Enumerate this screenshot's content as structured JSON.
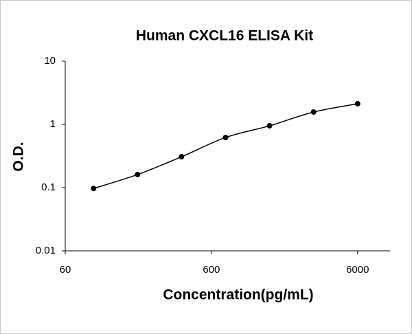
{
  "chart_data": {
    "type": "line",
    "title": "Human CXCL16 ELISA Kit",
    "x_label": "Concentration(pg/mL)",
    "y_label": "O.D.",
    "x_scale": "log",
    "y_scale": "log",
    "x": [
      93.75,
      187.5,
      375,
      750,
      1500,
      3000,
      6000
    ],
    "series": [
      {
        "name": "O.D.",
        "color": "#000000",
        "values": [
          0.097,
          0.161,
          0.308,
          0.62,
          0.95,
          1.57,
          2.12
        ]
      }
    ],
    "xlim": [
      60,
      10000
    ],
    "xticks": [
      60,
      600,
      6000
    ],
    "ylim": [
      0.01,
      10
    ],
    "yticks": [
      0.01,
      0.1,
      1,
      10
    ]
  }
}
